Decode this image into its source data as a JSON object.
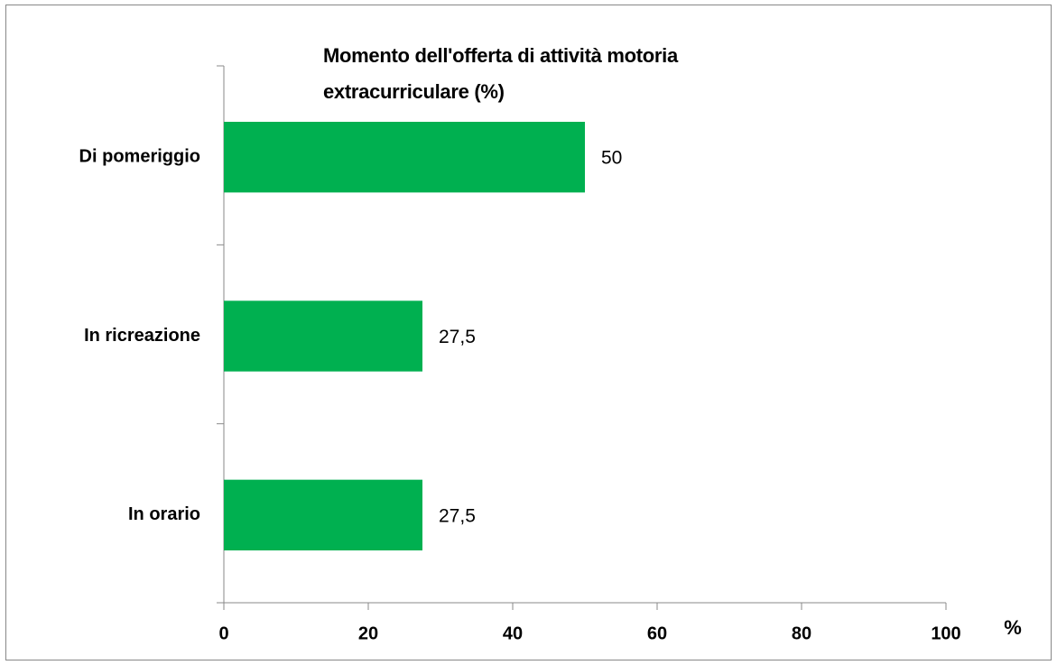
{
  "chart_data": {
    "type": "bar",
    "orientation": "horizontal",
    "title": "Momento dell'offerta di attività motoria extracurriculare (%)",
    "categories": [
      "Di pomeriggio",
      "In ricreazione",
      "In orario"
    ],
    "values": [
      50,
      27.5,
      27.5
    ],
    "value_labels": [
      "50",
      "27,5",
      "27,5"
    ],
    "color": "#00b050",
    "xlabel": "%",
    "xlim": [
      0,
      100
    ],
    "xticks": [
      0,
      20,
      40,
      60,
      80,
      100
    ],
    "grid": false
  }
}
